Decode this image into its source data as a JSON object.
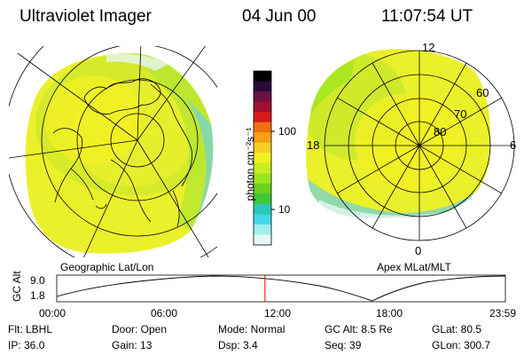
{
  "header": {
    "title": "Ultraviolet Imager",
    "date": "04 Jun 00",
    "time": "11:07:54 UT"
  },
  "left_map": {
    "caption": "Geographic Lat/Lon"
  },
  "right_map": {
    "caption": "Apex MLat/MLT",
    "lat_labels": [
      "60",
      "70",
      "80"
    ],
    "mlt_labels": {
      "top": "12",
      "left": "18",
      "right": "6",
      "bottom": "0"
    }
  },
  "colorbar": {
    "unit_label": "photon cm⁻²s⁻¹",
    "ticks": [
      "100",
      "10"
    ],
    "colors": [
      "#000000",
      "#2a0a3a",
      "#6a1045",
      "#a0102e",
      "#d81a1a",
      "#f07010",
      "#f8a010",
      "#f6d020",
      "#f2f020",
      "#c8f020",
      "#9ae61e",
      "#6ad21e",
      "#3ec83a",
      "#2cc8b8",
      "#40d8e8",
      "#a0eef0",
      "#e6f6f6"
    ]
  },
  "altitude_plot": {
    "ylabel": "GC Alt",
    "y_ticks": [
      "9.0",
      "1.8"
    ],
    "x_ticks": [
      "00:00",
      "06:00",
      "12:00",
      "18:00",
      "23:59"
    ],
    "current_time_marker_hours": 11.13,
    "marker_color": "#ff0000"
  },
  "info": {
    "row1": {
      "filter": "Flt: LBHL",
      "door": "Door: Open",
      "mode": "Mode: Normal",
      "gc_alt": "GC Alt: 8.5 Re",
      "glat": "GLat:  80.5"
    },
    "row2": {
      "ip": "IP: 36.0",
      "gain": "Gain: 13",
      "dsp": "Dsp:    3.4",
      "seq": "Seq: 39",
      "glon": "GLon: 300.7"
    }
  }
}
